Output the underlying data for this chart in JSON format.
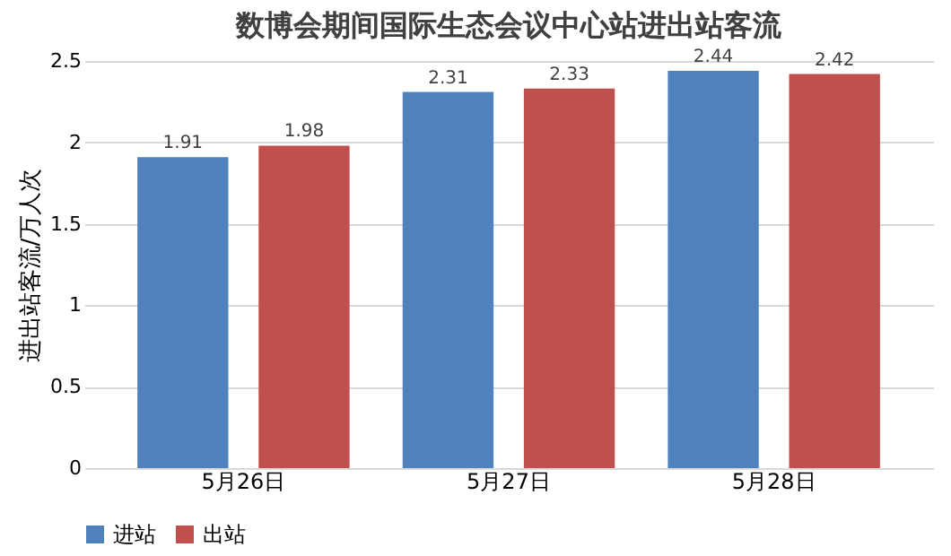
{
  "chart_data": {
    "type": "bar",
    "title": "数博会期间国际生态会议中心站进出站客流",
    "ylabel": "进出站客流/万人次",
    "categories": [
      "5月26日",
      "5月27日",
      "5月28日"
    ],
    "series": [
      {
        "name": "进站",
        "color": "#4f81bd",
        "values": [
          1.91,
          2.31,
          2.44
        ]
      },
      {
        "name": "出站",
        "color": "#c0504d",
        "values": [
          1.98,
          2.33,
          2.42
        ]
      }
    ],
    "ylim": [
      0,
      2.5
    ],
    "yticks": [
      0,
      0.5,
      1,
      1.5,
      2,
      2.5
    ],
    "grid": "y",
    "legend": "bottom",
    "data_labels": true
  }
}
